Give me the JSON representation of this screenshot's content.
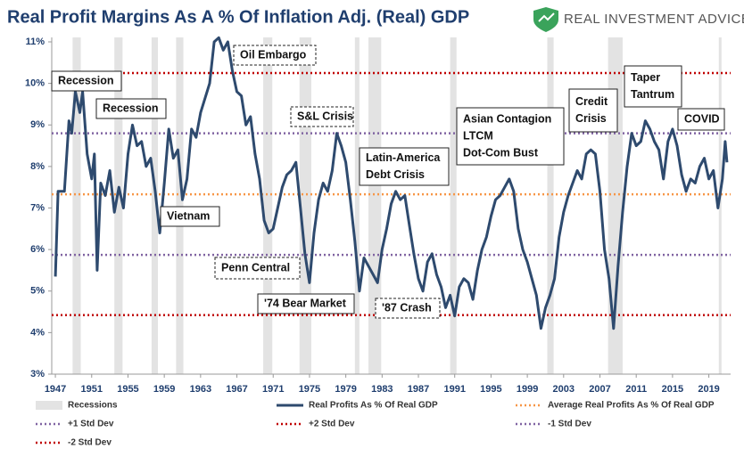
{
  "chart_data": {
    "type": "line",
    "title": "Real Profit Margins As A % Of Inflation Adj. (Real) GDP",
    "brand": "REAL INVESTMENT ADVICE",
    "xlim": [
      1946.6,
      2021.4
    ],
    "xticks": [
      1947,
      1951,
      1955,
      1959,
      1963,
      1967,
      1971,
      1975,
      1979,
      1983,
      1987,
      1991,
      1995,
      1999,
      2003,
      2007,
      2011,
      2015,
      2019
    ],
    "ylim": [
      3,
      11
    ],
    "yticks": [
      {
        "value": 3,
        "label": "3%"
      },
      {
        "value": 4,
        "label": "4%"
      },
      {
        "value": 5,
        "label": "5%"
      },
      {
        "value": 6,
        "label": "6%"
      },
      {
        "value": 7,
        "label": "7%"
      },
      {
        "value": 8,
        "label": "8%"
      },
      {
        "value": 9,
        "label": "9%"
      },
      {
        "value": 10,
        "label": "10%"
      },
      {
        "value": 11,
        "label": "11%"
      }
    ],
    "recessions_name": "Recessions",
    "recessions_color": "#e3e3e3",
    "recessions": [
      [
        1948.9,
        1949.8
      ],
      [
        1953.5,
        1954.4
      ],
      [
        1957.6,
        1958.3
      ],
      [
        1960.3,
        1961.1
      ],
      [
        1969.9,
        1970.9
      ],
      [
        1973.9,
        1975.2
      ],
      [
        1980.0,
        1980.5
      ],
      [
        1981.5,
        1982.9
      ],
      [
        1990.5,
        1991.2
      ],
      [
        2001.2,
        2001.9
      ],
      [
        2007.9,
        2009.5
      ],
      [
        2020.1,
        2020.4
      ]
    ],
    "series": [
      {
        "name": "Real Profits As % Of Real GDP",
        "color": "#2e4a6e",
        "x": [
          1947.0,
          1947.3,
          1948.0,
          1948.5,
          1948.8,
          1949.2,
          1949.7,
          1950.0,
          1950.5,
          1951.0,
          1951.3,
          1951.6,
          1952.0,
          1952.5,
          1953.0,
          1953.5,
          1954.0,
          1954.5,
          1955.0,
          1955.5,
          1956.0,
          1956.5,
          1957.0,
          1957.5,
          1958.0,
          1958.5,
          1959.0,
          1959.5,
          1960.0,
          1960.5,
          1961.0,
          1961.5,
          1962.0,
          1962.5,
          1963.0,
          1964.0,
          1964.5,
          1965.0,
          1965.5,
          1966.0,
          1966.5,
          1967.0,
          1967.5,
          1968.0,
          1968.5,
          1969.0,
          1969.5,
          1970.0,
          1970.5,
          1971.0,
          1971.5,
          1972.0,
          1972.5,
          1973.0,
          1973.5,
          1974.0,
          1974.5,
          1975.0,
          1975.5,
          1976.0,
          1976.5,
          1977.0,
          1977.5,
          1978.0,
          1978.5,
          1979.0,
          1979.5,
          1980.0,
          1980.5,
          1981.0,
          1981.5,
          1982.0,
          1982.5,
          1983.0,
          1983.5,
          1984.0,
          1984.5,
          1985.0,
          1985.5,
          1986.0,
          1986.5,
          1987.0,
          1987.5,
          1988.0,
          1988.5,
          1989.0,
          1989.5,
          1990.0,
          1990.5,
          1991.0,
          1991.5,
          1992.0,
          1992.5,
          1993.0,
          1993.5,
          1994.0,
          1994.5,
          1995.0,
          1995.5,
          1996.0,
          1996.5,
          1997.0,
          1997.5,
          1998.0,
          1998.5,
          1999.0,
          1999.5,
          2000.0,
          2000.5,
          2001.0,
          2001.5,
          2002.0,
          2002.5,
          2003.0,
          2003.5,
          2004.0,
          2004.5,
          2005.0,
          2005.5,
          2006.0,
          2006.5,
          2007.0,
          2007.5,
          2008.0,
          2008.5,
          2009.0,
          2009.5,
          2010.0,
          2010.5,
          2011.0,
          2011.5,
          2012.0,
          2012.5,
          2013.0,
          2013.5,
          2014.0,
          2014.5,
          2015.0,
          2015.5,
          2016.0,
          2016.5,
          2017.0,
          2017.5,
          2018.0,
          2018.5,
          2019.0,
          2019.5,
          2020.0,
          2020.5,
          2020.8,
          2021.0
        ],
        "values": [
          5.35,
          7.4,
          7.4,
          9.1,
          8.8,
          9.8,
          9.3,
          9.8,
          8.3,
          7.7,
          8.3,
          5.5,
          7.6,
          7.3,
          7.9,
          6.9,
          7.5,
          7.0,
          8.3,
          9.0,
          8.5,
          8.6,
          8.0,
          8.2,
          7.4,
          6.4,
          7.6,
          8.9,
          8.2,
          8.4,
          7.2,
          7.7,
          8.9,
          8.7,
          9.3,
          10.0,
          11.0,
          11.1,
          10.8,
          11.0,
          10.3,
          9.8,
          9.7,
          9.0,
          9.2,
          8.3,
          7.7,
          6.7,
          6.4,
          6.5,
          7.0,
          7.5,
          7.8,
          7.9,
          8.1,
          7.0,
          5.9,
          5.2,
          6.4,
          7.2,
          7.6,
          7.4,
          7.9,
          8.8,
          8.5,
          8.1,
          7.2,
          6.2,
          5.0,
          5.8,
          5.6,
          5.4,
          5.2,
          6.0,
          6.5,
          7.1,
          7.4,
          7.2,
          7.3,
          6.6,
          5.9,
          5.3,
          5.0,
          5.7,
          5.9,
          5.4,
          5.1,
          4.6,
          4.9,
          4.4,
          5.1,
          5.3,
          5.2,
          4.8,
          5.5,
          6.0,
          6.3,
          6.8,
          7.2,
          7.3,
          7.5,
          7.7,
          7.4,
          6.5,
          6.0,
          5.7,
          5.3,
          4.9,
          4.1,
          4.6,
          4.9,
          5.3,
          6.3,
          6.9,
          7.3,
          7.6,
          7.9,
          7.7,
          8.3,
          8.4,
          8.3,
          7.4,
          6.0,
          5.3,
          4.1,
          5.6,
          6.9,
          8.0,
          8.8,
          8.5,
          8.6,
          9.1,
          8.9,
          8.6,
          8.4,
          7.7,
          8.6,
          8.9,
          8.5,
          7.8,
          7.4,
          7.7,
          7.6,
          8.0,
          8.2,
          7.7,
          7.9,
          7.0,
          7.7,
          8.6,
          8.1
        ]
      }
    ],
    "reference_lines": [
      {
        "name": "Average Real Profits As % Of Real GDP",
        "value": 7.33,
        "color": "#f79646"
      },
      {
        "name": "+1 Std Dev",
        "value": 8.8,
        "color": "#8064a2"
      },
      {
        "name": "+2 Std Dev",
        "value": 10.25,
        "color": "#c00000"
      },
      {
        "name": "-1 Std Dev",
        "value": 5.87,
        "color": "#8064a2"
      },
      {
        "name": "-2 Std Dev",
        "value": 4.42,
        "color": "#c00000"
      }
    ],
    "annotations": [
      [
        "Recession"
      ],
      [
        "Recession"
      ],
      [
        "Oil Embargo"
      ],
      [
        "Vietnam"
      ],
      [
        "Penn Central"
      ],
      [
        "S&L Crisis"
      ],
      [
        "'74 Bear Market"
      ],
      [
        "Latin-America",
        "Debt Crisis"
      ],
      [
        "'87 Crash"
      ],
      [
        "Asian Contagion",
        "LTCM",
        "Dot-Com Bust"
      ],
      [
        "Credit",
        "Crisis"
      ],
      [
        "Taper",
        "Tantrum"
      ],
      [
        "COVID"
      ]
    ]
  }
}
